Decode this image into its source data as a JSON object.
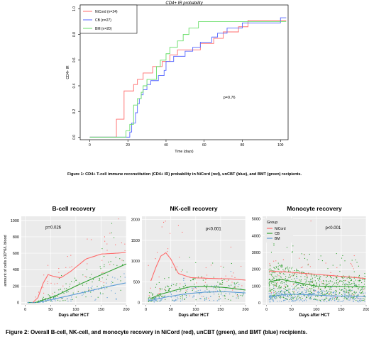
{
  "figure1": {
    "caption": "Figure 1: CD4+ T-cell immune reconstitution (CD4+ IR) probability in NiCord (red), unCBT (blue), and BMT (green) recipients.",
    "chart_data": {
      "type": "line",
      "title": "CD4+ IR probability",
      "xlabel": "Time (days)",
      "ylabel": "CD4+ IR",
      "xlim": [
        -5,
        104
      ],
      "ylim": [
        -0.02,
        1.03
      ],
      "xticks": [
        "0",
        "20",
        "40",
        "60",
        "80",
        "100"
      ],
      "yticks": [
        "0.0",
        "0.2",
        "0.4",
        "0.6",
        "0.8",
        "1.0"
      ],
      "annotation": "p=0.76",
      "legend_position": "top-left",
      "grid": false,
      "series": [
        {
          "name": "NiCord (n=24)",
          "color": "#ff6b6b",
          "steps": [
            [
              14,
              0.14
            ],
            [
              18,
              0.36
            ],
            [
              23,
              0.41
            ],
            [
              25,
              0.45
            ],
            [
              28,
              0.5
            ],
            [
              33,
              0.55
            ],
            [
              38,
              0.59
            ],
            [
              42,
              0.64
            ],
            [
              46,
              0.68
            ],
            [
              55,
              0.68
            ],
            [
              58,
              0.73
            ],
            [
              65,
              0.77
            ],
            [
              70,
              0.82
            ],
            [
              78,
              0.86
            ],
            [
              83,
              0.91
            ]
          ],
          "x_end": 103
        },
        {
          "name": "CB (n=27)",
          "color": "#5566ff",
          "steps": [
            [
              21,
              0.04
            ],
            [
              22,
              0.11
            ],
            [
              24,
              0.19
            ],
            [
              25,
              0.26
            ],
            [
              26,
              0.3
            ],
            [
              27,
              0.33
            ],
            [
              28,
              0.37
            ],
            [
              30,
              0.41
            ],
            [
              32,
              0.44
            ],
            [
              36,
              0.48
            ],
            [
              39,
              0.52
            ],
            [
              40,
              0.59
            ],
            [
              44,
              0.63
            ],
            [
              50,
              0.67
            ],
            [
              54,
              0.7
            ],
            [
              58,
              0.74
            ],
            [
              64,
              0.78
            ],
            [
              67,
              0.81
            ],
            [
              72,
              0.85
            ],
            [
              80,
              0.89
            ],
            [
              100,
              0.93
            ]
          ],
          "x_end": 103
        },
        {
          "name": "BM (n=20)",
          "color": "#66dd66",
          "steps": [
            [
              19,
              0.05
            ],
            [
              21,
              0.1
            ],
            [
              23,
              0.25
            ],
            [
              25,
              0.3
            ],
            [
              27,
              0.35
            ],
            [
              28,
              0.4
            ],
            [
              30,
              0.45
            ],
            [
              35,
              0.55
            ],
            [
              37,
              0.6
            ],
            [
              40,
              0.65
            ],
            [
              42,
              0.7
            ],
            [
              46,
              0.75
            ],
            [
              49,
              0.8
            ],
            [
              52,
              0.85
            ],
            [
              57,
              0.9
            ]
          ],
          "x_end": 103
        }
      ]
    }
  },
  "figure2": {
    "caption": "Figure 2: Overall B-cell, NK-cell, and monocyte recovery in NiCord (red), unCBT (green), and BMT (blue) recipients.",
    "chart_data": [
      {
        "type": "scatter",
        "title": "B-cell recovery",
        "xlabel": "Days after HCT",
        "ylabel": "amount of cells x10^6/L blood",
        "xlim": [
          -8,
          200
        ],
        "ylim": [
          -30,
          1050
        ],
        "xticks": [
          "0",
          "50",
          "100",
          "150",
          "200"
        ],
        "yticks": [
          "0",
          "200",
          "400",
          "600",
          "800",
          "1000"
        ],
        "yticks_v": [
          0,
          200,
          400,
          600,
          800,
          1000
        ],
        "annotation": "p=0.026",
        "annotation_x": 40,
        "annotation_y": 900,
        "series": [
          {
            "name": "NiCord",
            "color": "#ff6b6b",
            "curve": [
              [
                15,
                0
              ],
              [
                25,
                60
              ],
              [
                35,
                230
              ],
              [
                45,
                340
              ],
              [
                55,
                320
              ],
              [
                70,
                300
              ],
              [
                90,
                380
              ],
              [
                120,
                530
              ],
              [
                150,
                590
              ],
              [
                180,
                600
              ],
              [
                200,
                610
              ]
            ]
          },
          {
            "name": "CB",
            "color": "#2ea02e",
            "curve": [
              [
                20,
                0
              ],
              [
                60,
                80
              ],
              [
                100,
                200
              ],
              [
                140,
                310
              ],
              [
                170,
                390
              ],
              [
                200,
                470
              ]
            ]
          },
          {
            "name": "BM",
            "color": "#5b9bd5",
            "curve": [
              [
                25,
                0
              ],
              [
                70,
                60
              ],
              [
                120,
                130
              ],
              [
                160,
                190
              ],
              [
                200,
                240
              ]
            ]
          }
        ]
      },
      {
        "type": "scatter",
        "title": "NK-cell recovery",
        "xlabel": "Days after HCT",
        "ylabel": "",
        "xlim": [
          -8,
          200
        ],
        "ylim": [
          -60,
          2080
        ],
        "xticks": [
          "0",
          "50",
          "100",
          "150",
          "200"
        ],
        "yticks": [
          "0",
          "500",
          "1000",
          "1500",
          "2000"
        ],
        "yticks_v": [
          0,
          500,
          1000,
          1500,
          2000
        ],
        "annotation": "p<0.001",
        "annotation_x": 120,
        "annotation_y": 1750,
        "series": [
          {
            "name": "NiCord",
            "color": "#ff6b6b",
            "curve": [
              [
                10,
                520
              ],
              [
                20,
                850
              ],
              [
                30,
                1120
              ],
              [
                40,
                1200
              ],
              [
                50,
                1050
              ],
              [
                65,
                700
              ],
              [
                90,
                600
              ],
              [
                130,
                580
              ],
              [
                170,
                570
              ],
              [
                200,
                540
              ]
            ]
          },
          {
            "name": "CB",
            "color": "#2ea02e",
            "curve": [
              [
                10,
                100
              ],
              [
                30,
                200
              ],
              [
                60,
                300
              ],
              [
                90,
                380
              ],
              [
                120,
                390
              ],
              [
                160,
                360
              ],
              [
                200,
                300
              ]
            ]
          },
          {
            "name": "BM",
            "color": "#5b9bd5",
            "curve": [
              [
                10,
                50
              ],
              [
                40,
                130
              ],
              [
                80,
                210
              ],
              [
                120,
                250
              ],
              [
                160,
                260
              ],
              [
                200,
                230
              ]
            ]
          }
        ]
      },
      {
        "type": "scatter",
        "title": "Monocyte recovery",
        "xlabel": "Days after HCT",
        "ylabel": "",
        "xlim": [
          -8,
          200
        ],
        "ylim": [
          -120,
          5150
        ],
        "xticks": [
          "0",
          "50",
          "100",
          "150",
          "200"
        ],
        "yticks": [
          "0",
          "1000",
          "2000",
          "3000",
          "4000",
          "5000"
        ],
        "yticks_v": [
          0,
          1000,
          2000,
          3000,
          4000,
          5000
        ],
        "annotation": "p<0.001",
        "annotation_x": 118,
        "annotation_y": 4400,
        "legend": {
          "title": "Group",
          "position": "top-left",
          "entries": [
            {
              "label": "NiCord",
              "color": "#ff6b6b"
            },
            {
              "label": "CB",
              "color": "#2ea02e"
            },
            {
              "label": "BM",
              "color": "#5b9bd5"
            }
          ]
        },
        "series": [
          {
            "name": "NiCord",
            "color": "#ff6b6b",
            "curve": [
              [
                5,
                1900
              ],
              [
                50,
                1820
              ],
              [
                100,
                1700
              ],
              [
                150,
                1580
              ],
              [
                200,
                1450
              ]
            ]
          },
          {
            "name": "CB",
            "color": "#2ea02e",
            "curve": [
              [
                5,
                1250
              ],
              [
                30,
                1400
              ],
              [
                60,
                1220
              ],
              [
                100,
                1000
              ],
              [
                150,
                980
              ],
              [
                200,
                950
              ]
            ]
          },
          {
            "name": "BM",
            "color": "#5b9bd5",
            "curve": [
              [
                5,
                350
              ],
              [
                40,
                520
              ],
              [
                80,
                500
              ],
              [
                130,
                420
              ],
              [
                200,
                380
              ]
            ]
          }
        ]
      }
    ]
  }
}
